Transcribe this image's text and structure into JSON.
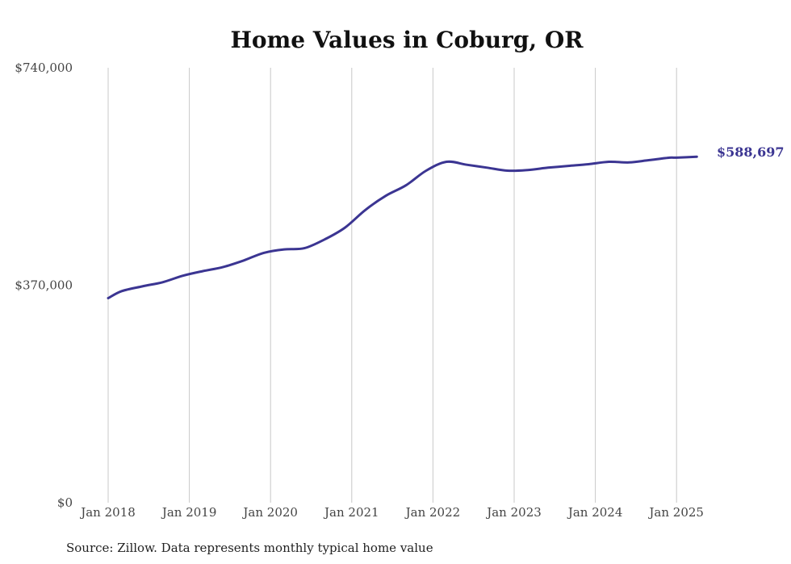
{
  "chart_data": {
    "type": "line",
    "title": "Home Values in Coburg, OR",
    "xlabel": "",
    "ylabel": "",
    "source": "Source: Zillow. Data represents monthly typical home value",
    "ylim": [
      0,
      740000
    ],
    "yticks": [
      {
        "value": 0,
        "label": "$0"
      },
      {
        "value": 370000,
        "label": "$370,000"
      },
      {
        "value": 740000,
        "label": "$740,000"
      }
    ],
    "xticks": [
      {
        "value": "2018-01",
        "label": "Jan 2018"
      },
      {
        "value": "2019-01",
        "label": "Jan 2019"
      },
      {
        "value": "2020-01",
        "label": "Jan 2020"
      },
      {
        "value": "2021-01",
        "label": "Jan 2021"
      },
      {
        "value": "2022-01",
        "label": "Jan 2022"
      },
      {
        "value": "2023-01",
        "label": "Jan 2023"
      },
      {
        "value": "2024-01",
        "label": "Jan 2024"
      },
      {
        "value": "2025-01",
        "label": "Jan 2025"
      }
    ],
    "grid": "vertical",
    "line_color": "#3b3592",
    "end_label": "$588,697",
    "series": [
      {
        "x": [
          "2018-01",
          "2018-03",
          "2018-06",
          "2018-09",
          "2018-12",
          "2019-03",
          "2019-06",
          "2019-09",
          "2019-12",
          "2020-03",
          "2020-06",
          "2020-09",
          "2020-12",
          "2021-03",
          "2021-06",
          "2021-09",
          "2021-12",
          "2022-03",
          "2022-06",
          "2022-09",
          "2022-12",
          "2023-03",
          "2023-06",
          "2023-09",
          "2023-12",
          "2024-03",
          "2024-06",
          "2024-09",
          "2024-12",
          "2025-01",
          "2025-04"
        ],
        "values": [
          348000,
          360000,
          368000,
          375000,
          386000,
          394000,
          401000,
          412000,
          425000,
          431000,
          433000,
          448000,
          468000,
          498000,
          522000,
          540000,
          565000,
          580000,
          575000,
          570000,
          565000,
          566000,
          570000,
          573000,
          576000,
          580000,
          579000,
          583000,
          587000,
          587000,
          588697
        ]
      }
    ]
  }
}
